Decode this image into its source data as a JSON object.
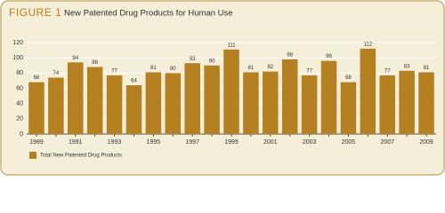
{
  "chart_data": {
    "type": "bar",
    "figure_label": "FIGURE 1",
    "title": "New Patented Drug Products for Human Use",
    "categories": [
      "1989",
      null,
      "1991",
      null,
      "1993",
      null,
      "1995",
      null,
      "1997",
      null,
      "1999",
      null,
      "2001",
      null,
      "2003",
      null,
      "2005",
      null,
      "2007",
      null,
      "2009"
    ],
    "series": [
      {
        "name": "Total New Patented Drug Products",
        "color": "#b5801f",
        "values": [
          68,
          74,
          94,
          88,
          77,
          64,
          81,
          80,
          93,
          90,
          111,
          81,
          82,
          98,
          77,
          96,
          68,
          112,
          77,
          83,
          81
        ]
      }
    ],
    "ylim": [
      0,
      120
    ],
    "yticks": [
      0,
      20,
      40,
      60,
      80,
      100,
      120
    ],
    "grid": true,
    "legend": "bottom-left"
  }
}
